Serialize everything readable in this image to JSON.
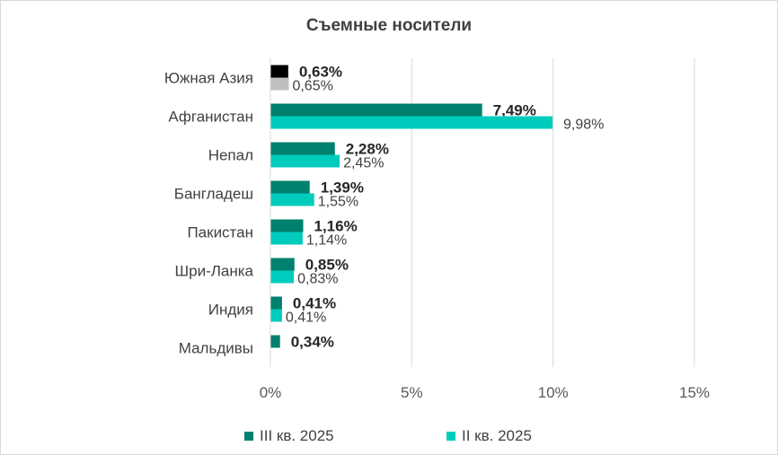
{
  "chart_data": {
    "type": "bar",
    "orientation": "horizontal",
    "title": "Съемные носители",
    "xlim": [
      0,
      15
    ],
    "x_ticks": [
      {
        "value": 0,
        "label": "0%"
      },
      {
        "value": 5,
        "label": "5%"
      },
      {
        "value": 10,
        "label": "10%"
      },
      {
        "value": 15,
        "label": "15%"
      }
    ],
    "grid": "vertical",
    "legend_position": "bottom",
    "categories": [
      "Южная Азия",
      "Афганистан",
      "Непал",
      "Бангладеш",
      "Пакистан",
      "Шри-Ланка",
      "Индия",
      "Мальдивы"
    ],
    "series": [
      {
        "name": "III кв. 2025",
        "color": "#00806f",
        "highlight_color": "#000000",
        "values": [
          0.63,
          7.49,
          2.28,
          1.39,
          1.16,
          0.85,
          0.41,
          0.34
        ],
        "labels": [
          "0,63%",
          "7,49%",
          "2,28%",
          "1,39%",
          "1,16%",
          "0,85%",
          "0,41%",
          "0,34%"
        ]
      },
      {
        "name": "II кв. 2025",
        "color": "#00ccbe",
        "highlight_color": "#bfbfbf",
        "values": [
          0.65,
          9.98,
          2.45,
          1.55,
          1.14,
          0.83,
          0.41,
          null
        ],
        "labels": [
          "0,65%",
          "9,98%",
          "2,45%",
          "1,55%",
          "1,14%",
          "0,83%",
          "0,41%",
          null
        ]
      }
    ]
  }
}
